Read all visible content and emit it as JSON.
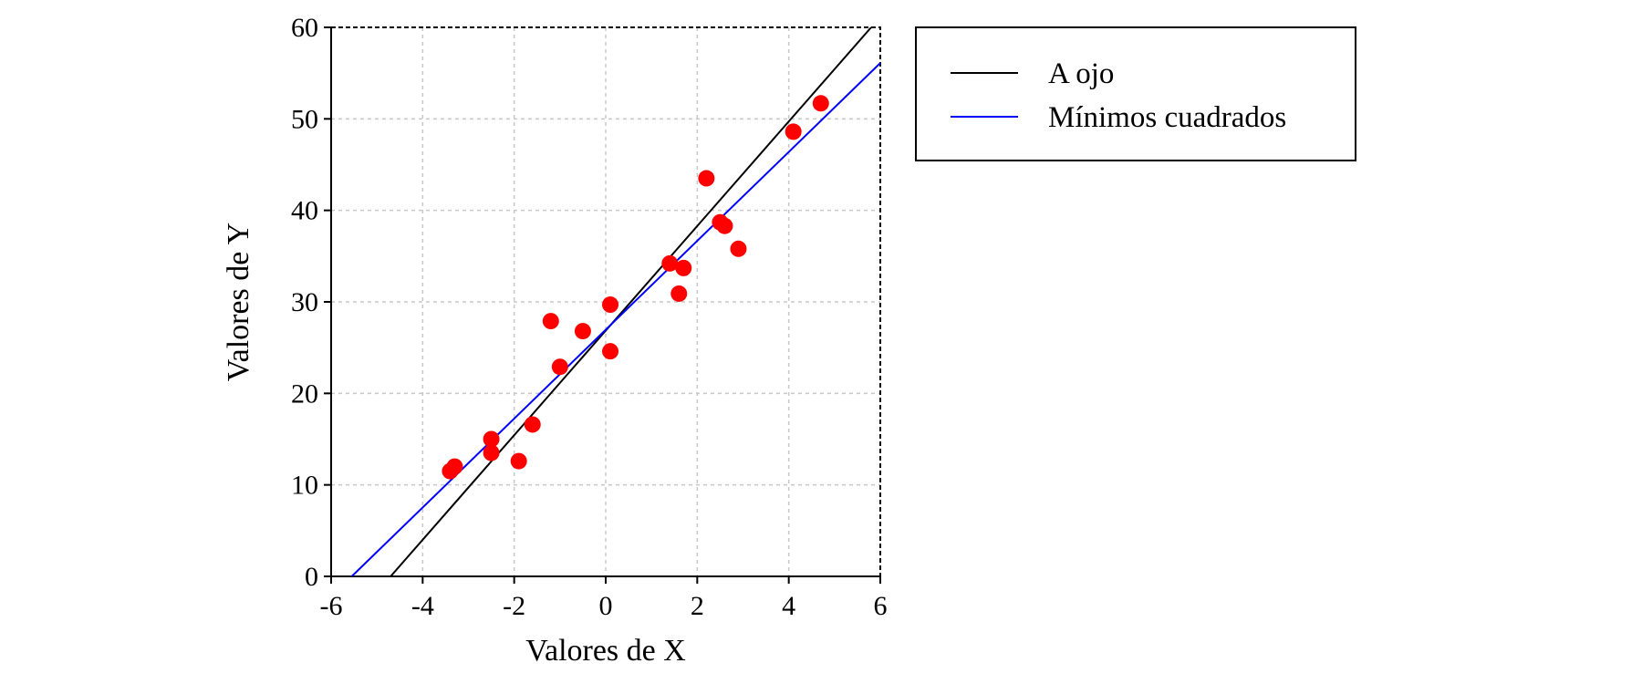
{
  "chart_data": {
    "type": "scatter",
    "xlabel": "Valores de X",
    "ylabel": "Valores de Y",
    "xlim": [
      -6,
      6
    ],
    "ylim": [
      0,
      60
    ],
    "xticks": [
      -6,
      -4,
      -2,
      0,
      2,
      4,
      6
    ],
    "yticks": [
      0,
      10,
      20,
      30,
      40,
      50,
      60
    ],
    "grid": true,
    "legend_position": "outside-right-top",
    "points": {
      "color": "#ff0000",
      "x": [
        -3.4,
        -3.3,
        -2.5,
        -2.5,
        -1.9,
        -1.6,
        -1.2,
        -1.0,
        -0.5,
        0.1,
        0.1,
        1.4,
        1.6,
        1.7,
        2.2,
        2.5,
        2.6,
        2.9,
        4.1,
        4.7
      ],
      "y": [
        11.5,
        12.0,
        15.0,
        13.5,
        12.6,
        16.6,
        27.9,
        22.9,
        26.8,
        29.7,
        24.6,
        34.2,
        30.9,
        33.7,
        43.5,
        38.7,
        38.3,
        35.8,
        48.6,
        51.7
      ]
    },
    "series": [
      {
        "name": "A ojo",
        "kind": "line",
        "color": "#000000",
        "x": [
          -4.7,
          5.8
        ],
        "y": [
          0,
          60
        ]
      },
      {
        "name": "Mínimos cuadrados",
        "kind": "line",
        "color": "#0000ff",
        "x": [
          -5.55,
          6.0
        ],
        "y": [
          0,
          56.1
        ]
      }
    ]
  }
}
